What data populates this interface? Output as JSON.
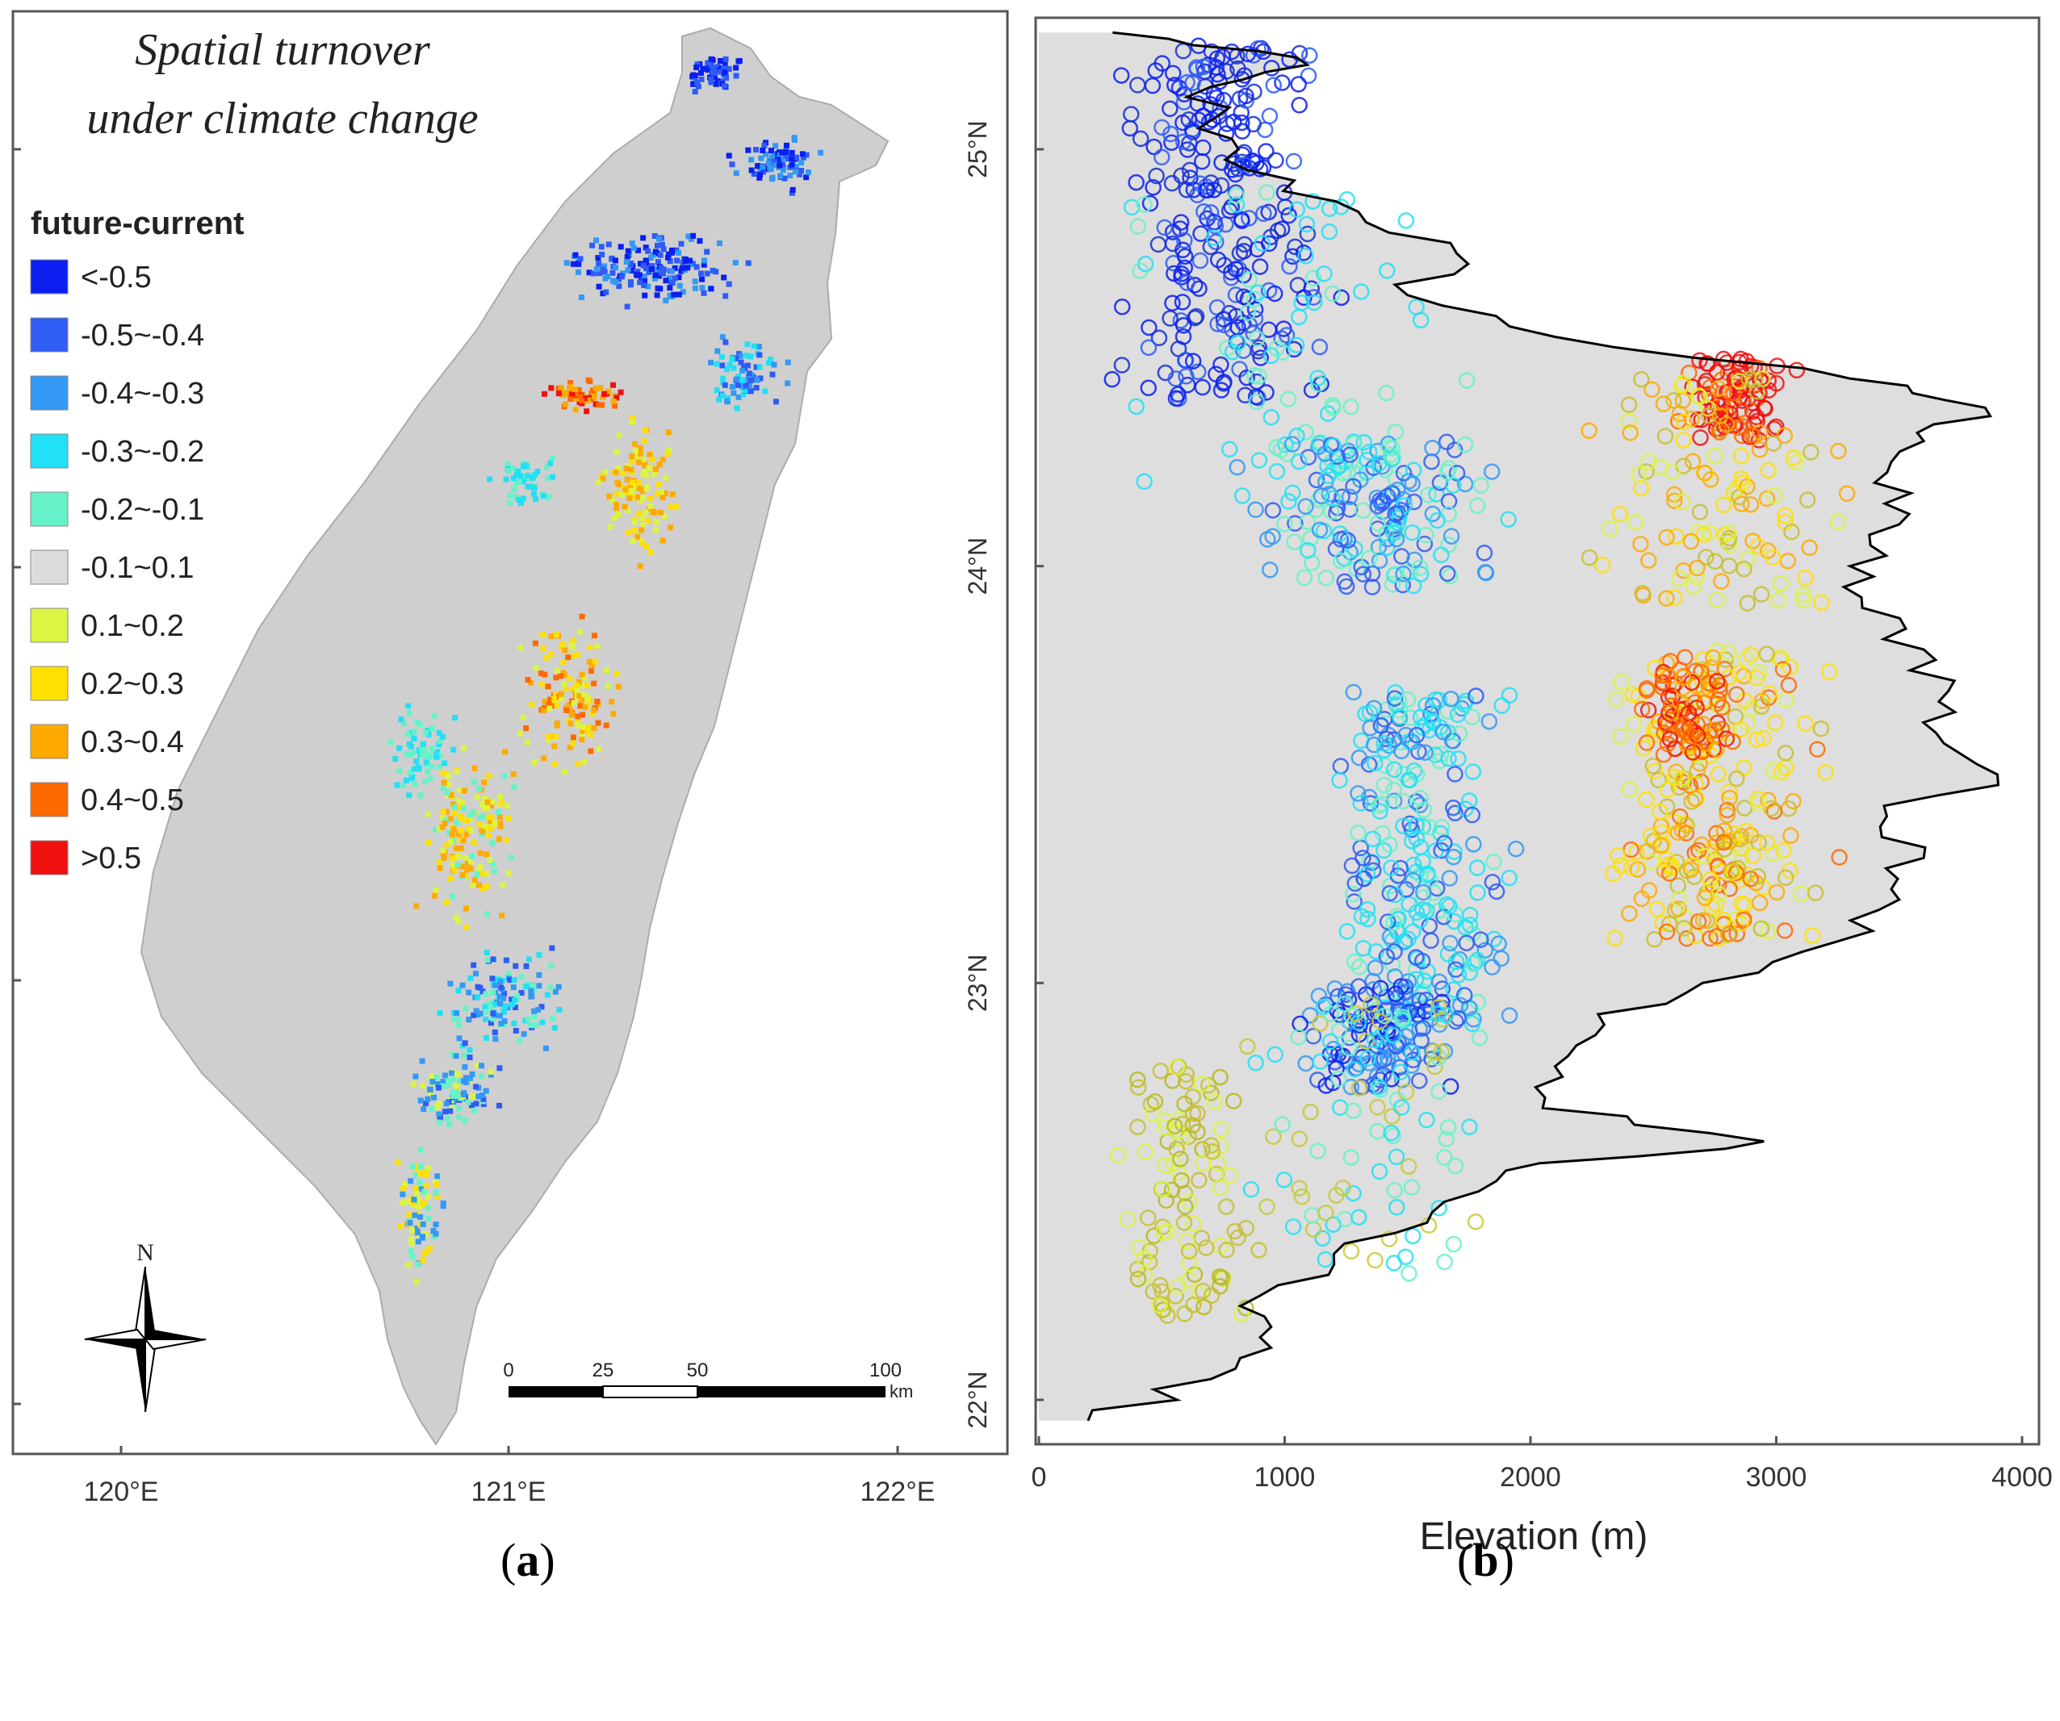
{
  "panel_a": {
    "title_line1": "Spatial turnover",
    "title_line2": "under climate change",
    "legend_title": "future-current",
    "legend": [
      {
        "label": "<-0.5",
        "color": "#0a1ff0"
      },
      {
        "label": "-0.5~-0.4",
        "color": "#2e5cf5"
      },
      {
        "label": "-0.4~-0.3",
        "color": "#3399f5"
      },
      {
        "label": "-0.3~-0.2",
        "color": "#22e0f5"
      },
      {
        "label": "-0.2~-0.1",
        "color": "#66f2c8"
      },
      {
        "label": "-0.1~0.1",
        "color": "#dcdcdc"
      },
      {
        "label": "0.1~0.2",
        "color": "#dcf542"
      },
      {
        "label": "0.2~0.3",
        "color": "#ffe000"
      },
      {
        "label": "0.3~0.4",
        "color": "#ffaa00"
      },
      {
        "label": "0.4~0.5",
        "color": "#ff6a00"
      },
      {
        "label": ">0.5",
        "color": "#f01010"
      }
    ],
    "x_ticks": [
      "120°E",
      "121°E",
      "122°E"
    ],
    "north_label": "N",
    "scale_labels": [
      "0",
      "25",
      "50",
      "100"
    ],
    "scale_unit": "km",
    "caption": "a"
  },
  "panel_b": {
    "xlabel": "Elevation (m)",
    "x_ticks": [
      "0",
      "1000",
      "2000",
      "3000",
      "4000"
    ],
    "y_ticks": [
      "25°N",
      "24°N",
      "23°N",
      "22°N"
    ],
    "caption": "b"
  },
  "chart_data": {
    "type": "scatter",
    "xlabel": "Elevation (m)",
    "ylabel": "",
    "xlim": [
      0,
      4000
    ],
    "ylim": [
      21.9,
      25.3
    ],
    "max_elevation_profile": [
      [
        25.28,
        300
      ],
      [
        25.22,
        1050
      ],
      [
        25.15,
        700
      ],
      [
        25.05,
        650
      ],
      [
        24.95,
        850
      ],
      [
        24.85,
        1300
      ],
      [
        24.75,
        1700
      ],
      [
        24.65,
        1500
      ],
      [
        24.55,
        2100
      ],
      [
        24.45,
        3300
      ],
      [
        24.38,
        3850
      ],
      [
        24.3,
        3600
      ],
      [
        24.2,
        3400
      ],
      [
        24.1,
        3500
      ],
      [
        24.0,
        3300
      ],
      [
        23.9,
        3350
      ],
      [
        23.8,
        3600
      ],
      [
        23.7,
        3700
      ],
      [
        23.6,
        3650
      ],
      [
        23.5,
        3900
      ],
      [
        23.4,
        3450
      ],
      [
        23.3,
        3600
      ],
      [
        23.2,
        3500
      ],
      [
        23.1,
        3250
      ],
      [
        23.0,
        2700
      ],
      [
        22.9,
        2300
      ],
      [
        22.8,
        2100
      ],
      [
        22.7,
        2050
      ],
      [
        22.62,
        2950
      ],
      [
        22.55,
        1900
      ],
      [
        22.45,
        1600
      ],
      [
        22.35,
        1200
      ],
      [
        22.25,
        900
      ],
      [
        22.15,
        900
      ],
      [
        22.05,
        700
      ],
      [
        21.95,
        200
      ]
    ],
    "clusters": [
      {
        "class": "<-0.5",
        "lat_range": [
          24.4,
          25.25
        ],
        "elev_range": [
          200,
          1300
        ]
      },
      {
        "class": "-0.5~-0.4",
        "lat_range": [
          22.75,
          23.0
        ],
        "elev_range": [
          1000,
          1800
        ]
      },
      {
        "class": "-0.3~-0.2",
        "lat_range": [
          22.9,
          23.7
        ],
        "elev_range": [
          1100,
          2000
        ]
      },
      {
        "class": "-0.2~-0.1",
        "lat_range": [
          23.95,
          24.3
        ],
        "elev_range": [
          700,
          2000
        ]
      },
      {
        "class": "0.1~0.2",
        "lat_range": [
          22.2,
          22.8
        ],
        "elev_range": [
          200,
          1000
        ]
      },
      {
        "class": "0.2~0.3",
        "lat_range": [
          23.1,
          23.8
        ],
        "elev_range": [
          2200,
          3300
        ]
      },
      {
        "class": "0.4~0.5",
        "lat_range": [
          23.55,
          23.75
        ],
        "elev_range": [
          2400,
          2900
        ]
      },
      {
        "class": ">0.5",
        "lat_range": [
          24.3,
          24.5
        ],
        "elev_range": [
          2500,
          3100
        ]
      }
    ]
  }
}
